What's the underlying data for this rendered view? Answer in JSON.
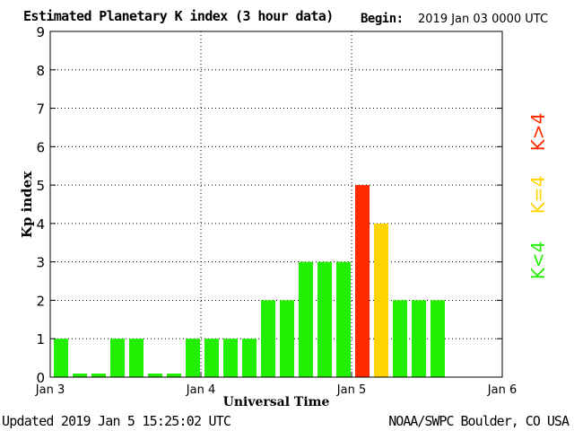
{
  "header": {
    "title": "Estimated Planetary K index (3 hour data)",
    "begin_label": "Begin:",
    "begin_value": "2019 Jan 03 0000 UTC"
  },
  "footer": {
    "updated": "Updated 2019 Jan  5 15:25:02 UTC",
    "credit": "NOAA/SWPC Boulder, CO USA"
  },
  "legend": [
    {
      "label": "K>4",
      "color": "#ff2a00"
    },
    {
      "label": "K=4",
      "color": "#ffd400"
    },
    {
      "label": "K<4",
      "color": "#22f000"
    }
  ],
  "chart_data": {
    "type": "bar",
    "title": "Estimated Planetary K index (3 hour data)",
    "xlabel": "Universal Time",
    "ylabel": "Kp index",
    "ylim": [
      0,
      9
    ],
    "yticks": [
      "0",
      "1",
      "2",
      "3",
      "4",
      "5",
      "6",
      "7",
      "8",
      "9"
    ],
    "xticks": [
      "Jan 3",
      "Jan 4",
      "Jan 5",
      "Jan 6"
    ],
    "grid": true,
    "values": [
      1,
      0,
      0,
      1,
      1,
      0,
      0,
      1,
      1,
      1,
      1,
      2,
      2,
      3,
      3,
      3,
      5,
      4,
      2,
      2,
      2
    ],
    "colors": {
      "low": "#22f000",
      "equal": "#ffd400",
      "high": "#ff2a00"
    }
  }
}
